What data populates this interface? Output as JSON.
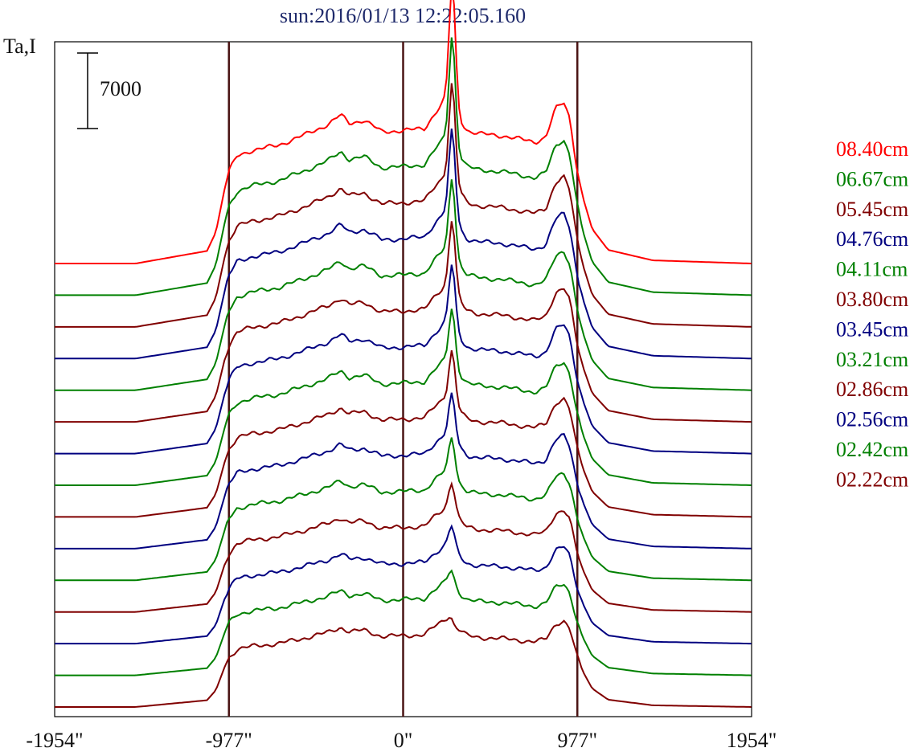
{
  "chart_data": {
    "type": "line",
    "title": "sun:2016/01/13 12:22:05.160",
    "ylabel": "Ta,I",
    "scale_bar_label": "7000",
    "scale_bar_value": 7000,
    "xlim": [
      -1954,
      1954
    ],
    "x_ticks": [
      {
        "value": -1954,
        "label": "-1954\""
      },
      {
        "value": -977,
        "label": "-977\""
      },
      {
        "value": 0,
        "label": "0\""
      },
      {
        "value": 977,
        "label": "977\""
      },
      {
        "value": 1954,
        "label": "1954\""
      }
    ],
    "reference_lines": [
      -977,
      0,
      977
    ],
    "legend_position": "right",
    "legend": [
      {
        "label": "08.40cm",
        "color": "#ff0000"
      },
      {
        "label": "06.67cm",
        "color": "#008000"
      },
      {
        "label": "05.45cm",
        "color": "#800000"
      },
      {
        "label": "04.76cm",
        "color": "#000080"
      },
      {
        "label": "04.11cm",
        "color": "#008000"
      },
      {
        "label": "03.80cm",
        "color": "#800000"
      },
      {
        "label": "03.45cm",
        "color": "#000080"
      },
      {
        "label": "03.21cm",
        "color": "#008000"
      },
      {
        "label": "02.86cm",
        "color": "#800000"
      },
      {
        "label": "02.56cm",
        "color": "#000080"
      },
      {
        "label": "02.42cm",
        "color": "#008000"
      },
      {
        "label": "02.22cm",
        "color": "#800000"
      }
    ],
    "series_colors": [
      "#ff0000",
      "#008000",
      "#800000",
      "#000080",
      "#008000",
      "#800000",
      "#000080",
      "#008000",
      "#800000",
      "#000080",
      "#008000",
      "#800000",
      "#000080",
      "#008000",
      "#800000"
    ],
    "series_profile": {
      "x": [
        -1954,
        -1500,
        -1300,
        -1100,
        -1050,
        -1000,
        -977,
        -930,
        -850,
        -700,
        -550,
        -420,
        -350,
        -300,
        -220,
        -120,
        0,
        120,
        180,
        230,
        265,
        290,
        310,
        360,
        420,
        560,
        740,
        800,
        855,
        900,
        935,
        977,
        1010,
        1060,
        1150,
        1400,
        1954
      ],
      "base": [
        0,
        0,
        600,
        1200,
        3000,
        7200,
        8800,
        10300,
        10800,
        11300,
        12300,
        13300,
        14200,
        13400,
        13700,
        12600,
        12700,
        12900,
        14400,
        15500,
        16400,
        14400,
        13900,
        12700,
        12400,
        12200,
        11600,
        12100,
        14800,
        15400,
        13900,
        8800,
        6200,
        3300,
        1300,
        300,
        0
      ]
    },
    "peak_amplitudes": [
      11000,
      9500,
      8500,
      7600,
      6600,
      6200,
      5400,
      4800,
      4300,
      3600,
      3100,
      2400,
      1700,
      1000,
      0
    ]
  }
}
